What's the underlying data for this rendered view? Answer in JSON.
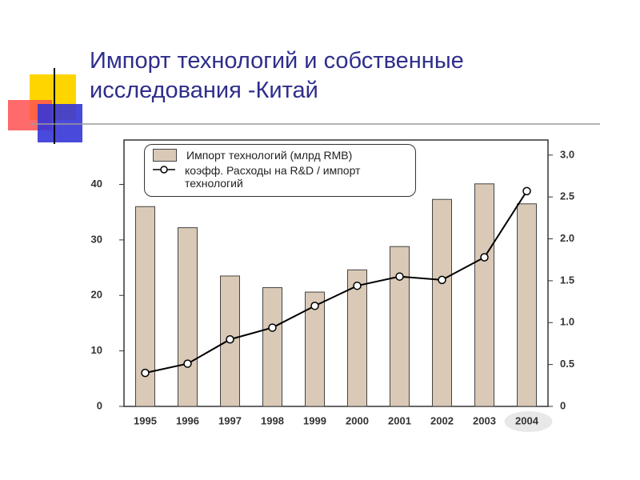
{
  "title": "Импорт технологий и собственные исследования -Китай",
  "chart_data": {
    "type": "bar-line",
    "categories": [
      "1995",
      "1996",
      "1997",
      "1998",
      "1999",
      "2000",
      "2001",
      "2002",
      "2003",
      "2004"
    ],
    "series": [
      {
        "name": "Импорт технологий (млрд RMB)",
        "type": "bar",
        "color": "#d9c9b6",
        "values": [
          36,
          32.2,
          23.5,
          21.4,
          20.6,
          24.6,
          28.8,
          37.3,
          40.1,
          36.5
        ]
      },
      {
        "name": "коэфф. Расходы на R&D / импорт технологий",
        "type": "line",
        "axis": "y2",
        "color": "#000000",
        "values": [
          0.4,
          0.51,
          0.8,
          0.94,
          1.2,
          1.44,
          1.55,
          1.51,
          1.78,
          2.57
        ]
      }
    ],
    "ylim": [
      0,
      48
    ],
    "yticks": [
      0,
      10,
      20,
      30,
      40
    ],
    "y2lim": [
      0,
      3.18
    ],
    "y2ticks": [
      0,
      0.5,
      {
        "value": 1,
        "label": "1.0"
      },
      1.5,
      {
        "value": 2,
        "label": "2.0"
      },
      2.5,
      {
        "value": 3,
        "label": "3.0"
      }
    ]
  }
}
